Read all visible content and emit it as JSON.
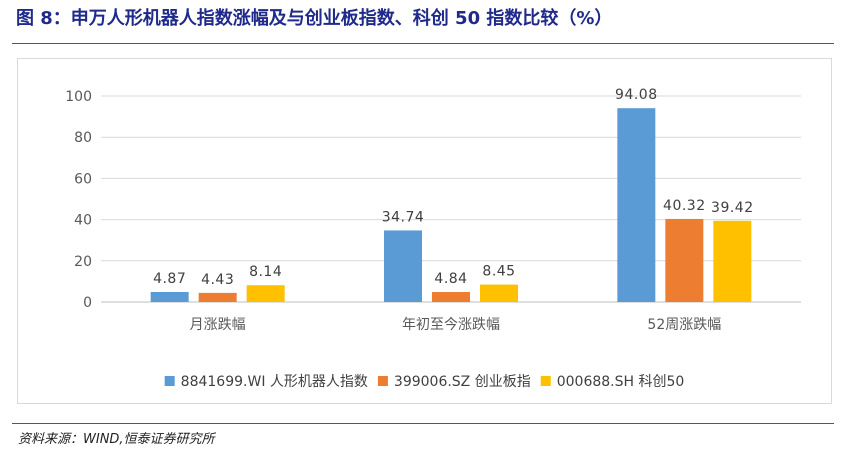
{
  "figure_title": "图 8：申万人形机器人指数涨幅及与创业板指数、科创 50 指数比较（%）",
  "source": "资料来源：WIND,恒泰证券研究所",
  "chart_data": {
    "type": "bar",
    "categories": [
      "月涨跌幅",
      "年初至今涨跌幅",
      "52周涨跌幅"
    ],
    "series": [
      {
        "name": "8841699.WI 人形机器人指数",
        "color": "#5b9bd5",
        "values": [
          4.87,
          34.74,
          94.08
        ],
        "labels": [
          "4.87",
          "34.74",
          "94.08"
        ]
      },
      {
        "name": "399006.SZ 创业板指",
        "color": "#ed7d31",
        "values": [
          4.43,
          4.84,
          40.32
        ],
        "labels": [
          "4.43",
          "4.84",
          "40.32"
        ]
      },
      {
        "name": "000688.SH 科创50",
        "color": "#ffc000",
        "values": [
          8.14,
          8.45,
          39.42
        ],
        "labels": [
          "8.14",
          "8.45",
          "39.42"
        ]
      }
    ],
    "ylim": [
      0,
      100
    ],
    "yticks": [
      0,
      20,
      40,
      60,
      80,
      100
    ],
    "ytick_labels": [
      "0",
      "20",
      "40",
      "60",
      "80",
      "100"
    ],
    "grid": true,
    "legend": "bottom"
  }
}
